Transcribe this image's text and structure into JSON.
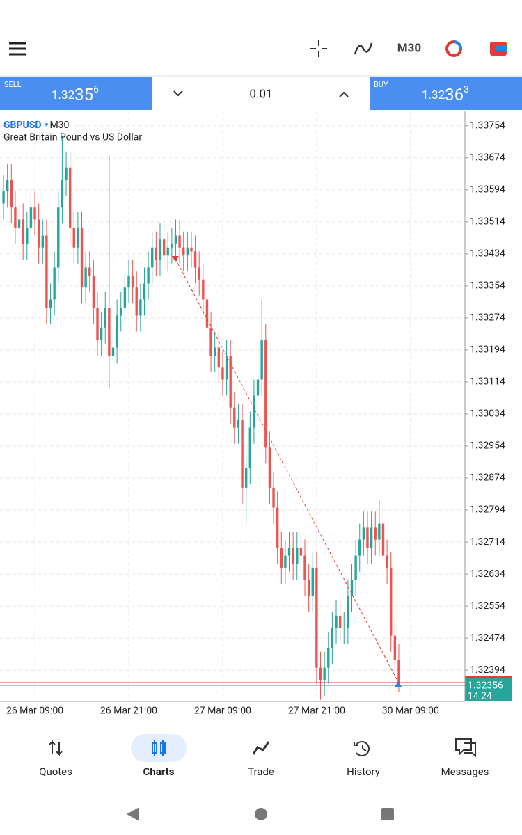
{
  "toolbar": {
    "timeframe": "M30"
  },
  "trade_panel": {
    "sell": {
      "label": "SELL",
      "parts": [
        "1.32",
        "35",
        "6"
      ]
    },
    "volume": "0.01",
    "buy": {
      "label": "BUY",
      "parts": [
        "1.32",
        "36",
        "3"
      ]
    }
  },
  "chart_data": {
    "type": "candlestick",
    "symbol": "GBPUSD",
    "timeframe": "M30",
    "description": "Great Britain Pound vs US Dollar",
    "colors": {
      "up": "#26a69a",
      "down": "#ef5350"
    },
    "grid": true,
    "ylim": [
      1.32316,
      1.33785
    ],
    "yticks": [
      1.33754,
      1.33674,
      1.33594,
      1.33514,
      1.33434,
      1.33354,
      1.33274,
      1.33194,
      1.33114,
      1.33034,
      1.32954,
      1.32874,
      1.32794,
      1.32714,
      1.32634,
      1.32554,
      1.32474,
      1.32394
    ],
    "xlim": [
      -0.9,
      117.9
    ],
    "xticks": [
      {
        "value": 8,
        "label": "26 Mar 09:00"
      },
      {
        "value": 32,
        "label": "26 Mar 21:00"
      },
      {
        "value": 56,
        "label": "27 Mar 09:00"
      },
      {
        "value": 80,
        "label": "27 Mar 21:00"
      },
      {
        "value": 104,
        "label": "30 Mar 09:00"
      }
    ],
    "bid": 1.32356,
    "ask": 1.32363,
    "time_label": "14:24",
    "ohlc": [
      [
        1.3356,
        1.3363,
        1.3352,
        1.3359
      ],
      [
        1.3359,
        1.3366,
        1.3355,
        1.3362
      ],
      [
        1.3362,
        1.3366,
        1.3351,
        1.3355
      ],
      [
        1.3355,
        1.3359,
        1.3346,
        1.335
      ],
      [
        1.335,
        1.3356,
        1.3346,
        1.3352
      ],
      [
        1.3352,
        1.3356,
        1.3342,
        1.3346
      ],
      [
        1.3346,
        1.3354,
        1.3342,
        1.335
      ],
      [
        1.335,
        1.3359,
        1.3346,
        1.3355
      ],
      [
        1.3355,
        1.3359,
        1.3348,
        1.3352
      ],
      [
        1.3352,
        1.3356,
        1.3341,
        1.3345
      ],
      [
        1.3345,
        1.3352,
        1.3341,
        1.3348
      ],
      [
        1.3348,
        1.3352,
        1.3326,
        1.333
      ],
      [
        1.333,
        1.3336,
        1.3326,
        1.3332
      ],
      [
        1.3332,
        1.3344,
        1.3328,
        1.334
      ],
      [
        1.334,
        1.3359,
        1.3336,
        1.3355
      ],
      [
        1.3355,
        1.3373,
        1.3351,
        1.3362
      ],
      [
        1.3362,
        1.3369,
        1.3358,
        1.3365
      ],
      [
        1.3365,
        1.3369,
        1.3346,
        1.335
      ],
      [
        1.335,
        1.3354,
        1.3341,
        1.3345
      ],
      [
        1.3345,
        1.3354,
        1.3341,
        1.335
      ],
      [
        1.335,
        1.3354,
        1.3331,
        1.3335
      ],
      [
        1.3335,
        1.3344,
        1.3331,
        1.334
      ],
      [
        1.334,
        1.3344,
        1.3334,
        1.3338
      ],
      [
        1.3338,
        1.3342,
        1.3326,
        1.333
      ],
      [
        1.333,
        1.3334,
        1.3318,
        1.3322
      ],
      [
        1.3322,
        1.3329,
        1.3318,
        1.3325
      ],
      [
        1.3325,
        1.3334,
        1.3321,
        1.333
      ],
      [
        1.333,
        1.3368,
        1.331,
        1.3318
      ],
      [
        1.3318,
        1.3324,
        1.3314,
        1.332
      ],
      [
        1.332,
        1.3332,
        1.3316,
        1.3328
      ],
      [
        1.3328,
        1.3334,
        1.3324,
        1.333
      ],
      [
        1.333,
        1.3339,
        1.3326,
        1.3335
      ],
      [
        1.3335,
        1.3342,
        1.3331,
        1.3338
      ],
      [
        1.3338,
        1.3342,
        1.3331,
        1.3335
      ],
      [
        1.3335,
        1.3339,
        1.3324,
        1.3328
      ],
      [
        1.3328,
        1.3336,
        1.3324,
        1.3332
      ],
      [
        1.3332,
        1.334,
        1.3328,
        1.3336
      ],
      [
        1.3336,
        1.3344,
        1.3332,
        1.334
      ],
      [
        1.334,
        1.3349,
        1.3336,
        1.3345
      ],
      [
        1.3345,
        1.3349,
        1.3338,
        1.3342
      ],
      [
        1.3342,
        1.3351,
        1.3338,
        1.3347
      ],
      [
        1.3347,
        1.3351,
        1.3339,
        1.3343
      ],
      [
        1.3343,
        1.3349,
        1.3339,
        1.3345
      ],
      [
        1.3345,
        1.335,
        1.3341,
        1.3346
      ],
      [
        1.3346,
        1.3352,
        1.3342,
        1.3348
      ],
      [
        1.3348,
        1.3352,
        1.3341,
        1.3345
      ],
      [
        1.3345,
        1.3349,
        1.3339,
        1.3343
      ],
      [
        1.3343,
        1.3349,
        1.3339,
        1.3345
      ],
      [
        1.3345,
        1.3349,
        1.334,
        1.3344
      ],
      [
        1.3344,
        1.3348,
        1.3336,
        1.334
      ],
      [
        1.334,
        1.3344,
        1.3333,
        1.3337
      ],
      [
        1.3337,
        1.3341,
        1.3328,
        1.3332
      ],
      [
        1.3332,
        1.3336,
        1.3321,
        1.3325
      ],
      [
        1.3325,
        1.3329,
        1.3314,
        1.3318
      ],
      [
        1.3318,
        1.3324,
        1.3314,
        1.332
      ],
      [
        1.332,
        1.3324,
        1.3311,
        1.3315
      ],
      [
        1.3315,
        1.3319,
        1.3308,
        1.3312
      ],
      [
        1.3312,
        1.3322,
        1.3308,
        1.3318
      ],
      [
        1.3318,
        1.3322,
        1.3301,
        1.3305
      ],
      [
        1.3305,
        1.3309,
        1.3296,
        1.33
      ],
      [
        1.33,
        1.3306,
        1.3296,
        1.3302
      ],
      [
        1.3302,
        1.3306,
        1.3281,
        1.3285
      ],
      [
        1.3285,
        1.3294,
        1.3276,
        1.329
      ],
      [
        1.329,
        1.3304,
        1.3286,
        1.33
      ],
      [
        1.33,
        1.3312,
        1.3296,
        1.3308
      ],
      [
        1.3308,
        1.3316,
        1.3304,
        1.3312
      ],
      [
        1.3312,
        1.3332,
        1.3308,
        1.3322
      ],
      [
        1.3322,
        1.3326,
        1.3291,
        1.3295
      ],
      [
        1.3295,
        1.3299,
        1.3281,
        1.3285
      ],
      [
        1.3285,
        1.3289,
        1.3276,
        1.328
      ],
      [
        1.328,
        1.3284,
        1.3266,
        1.327
      ],
      [
        1.327,
        1.3274,
        1.3261,
        1.3265
      ],
      [
        1.3265,
        1.3272,
        1.3261,
        1.3268
      ],
      [
        1.3268,
        1.3274,
        1.3264,
        1.327
      ],
      [
        1.327,
        1.3274,
        1.3262,
        1.3266
      ],
      [
        1.3266,
        1.3274,
        1.3262,
        1.327
      ],
      [
        1.327,
        1.3274,
        1.3264,
        1.3268
      ],
      [
        1.3268,
        1.3272,
        1.3258,
        1.3262
      ],
      [
        1.3262,
        1.3266,
        1.3254,
        1.3258
      ],
      [
        1.3258,
        1.3269,
        1.3254,
        1.3265
      ],
      [
        1.3265,
        1.3269,
        1.3236,
        1.324
      ],
      [
        1.324,
        1.3244,
        1.3232,
        1.3237
      ],
      [
        1.3237,
        1.3244,
        1.3233,
        1.324
      ],
      [
        1.324,
        1.3249,
        1.3236,
        1.3245
      ],
      [
        1.3245,
        1.3254,
        1.3241,
        1.325
      ],
      [
        1.325,
        1.3257,
        1.3246,
        1.3253
      ],
      [
        1.3253,
        1.3257,
        1.3246,
        1.325
      ],
      [
        1.325,
        1.3254,
        1.3246,
        1.325
      ],
      [
        1.325,
        1.3262,
        1.3246,
        1.3258
      ],
      [
        1.3258,
        1.3266,
        1.3254,
        1.3262
      ],
      [
        1.3262,
        1.3272,
        1.3258,
        1.3268
      ],
      [
        1.3268,
        1.3276,
        1.3264,
        1.3272
      ],
      [
        1.3272,
        1.3279,
        1.3268,
        1.3275
      ],
      [
        1.3275,
        1.3279,
        1.3266,
        1.327
      ],
      [
        1.327,
        1.3279,
        1.3266,
        1.3275
      ],
      [
        1.3275,
        1.3279,
        1.3268,
        1.3272
      ],
      [
        1.3272,
        1.3282,
        1.3268,
        1.3276
      ],
      [
        1.3276,
        1.328,
        1.3264,
        1.3268
      ],
      [
        1.3268,
        1.3272,
        1.3261,
        1.3265
      ],
      [
        1.3265,
        1.3269,
        1.3244,
        1.3248
      ],
      [
        1.3248,
        1.3252,
        1.3238,
        1.3242
      ],
      [
        1.3242,
        1.3246,
        1.3234,
        1.32356
      ]
    ]
  },
  "nav": [
    "Quotes",
    "Charts",
    "Trade",
    "History",
    "Messages"
  ]
}
